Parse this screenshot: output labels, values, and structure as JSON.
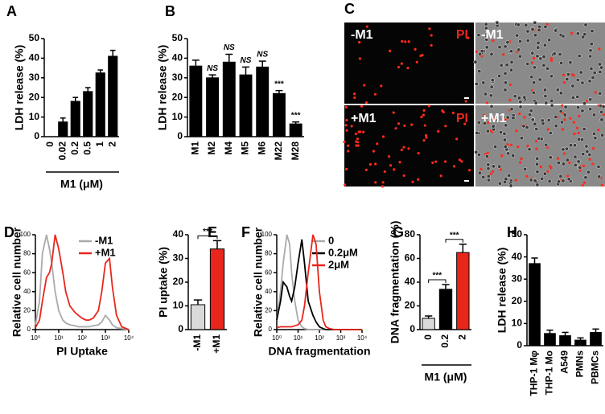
{
  "chart_data": [
    {
      "type": "bar",
      "panel": "A",
      "ylabel": "LDH release (%)",
      "xlabel": "M1 (μM)",
      "categories": [
        "0",
        "0.02",
        "0.2",
        "0.5",
        "1",
        "2"
      ],
      "values": [
        0,
        7.5,
        18,
        23,
        32.5,
        41
      ],
      "errors": [
        0,
        2,
        2,
        2,
        1.5,
        3
      ],
      "color": "#000000",
      "ylim": [
        0,
        50
      ],
      "yticks": [
        0,
        10,
        20,
        30,
        40,
        50
      ]
    },
    {
      "type": "bar",
      "panel": "B",
      "ylabel": "LDH release (%)",
      "categories": [
        "M1",
        "M2",
        "M4",
        "M5",
        "M6",
        "M22",
        "M28"
      ],
      "values": [
        36,
        30,
        38,
        31.5,
        35.5,
        22,
        6.5
      ],
      "errors": [
        3,
        1.5,
        4,
        4,
        3,
        1.5,
        1
      ],
      "annotations": [
        null,
        "NS",
        "NS",
        "NS",
        "NS",
        "***",
        "***"
      ],
      "color": "#000000",
      "ylim": [
        0,
        50
      ],
      "yticks": [
        0,
        10,
        20,
        30,
        40,
        50
      ]
    },
    {
      "type": "image",
      "panel": "C",
      "labels": [
        "-M1",
        "PI",
        "-M1",
        "+M1",
        "PI",
        "+M1"
      ]
    },
    {
      "type": "line",
      "panel": "D",
      "ylabel": "Relative cell number",
      "xlabel": "PI Uptake",
      "xscale": "log",
      "x": [
        1,
        1.5,
        2,
        3,
        4,
        5,
        7,
        10,
        15,
        20,
        30,
        50,
        70,
        100,
        150,
        200,
        300,
        500,
        700,
        1000,
        1500,
        2000,
        3000,
        5000,
        10000
      ],
      "series": [
        {
          "name": "-M1",
          "color": "#aaaaaa",
          "values": [
            5,
            30,
            80,
            100,
            85,
            70,
            40,
            20,
            10,
            7,
            5,
            4,
            3,
            3,
            3,
            3,
            4,
            5,
            8,
            15,
            10,
            5,
            2,
            1,
            0
          ]
        },
        {
          "name": "+M1",
          "color": "#e8261c",
          "values": [
            2,
            10,
            30,
            55,
            60,
            70,
            100,
            85,
            60,
            40,
            25,
            18,
            15,
            12,
            10,
            10,
            12,
            20,
            40,
            70,
            75,
            45,
            15,
            3,
            0
          ]
        }
      ],
      "xlim": [
        1,
        10000
      ],
      "xticks": [
        {
          "value": 1,
          "label": "10⁰"
        },
        {
          "value": 10,
          "label": "10¹"
        },
        {
          "value": 100,
          "label": "10²"
        },
        {
          "value": 1000,
          "label": "10³"
        },
        {
          "value": 10000,
          "label": "10⁴"
        }
      ],
      "ylim": [
        0,
        100
      ],
      "yticks": [
        0,
        20,
        40,
        60,
        80,
        100
      ],
      "legend": "upper right"
    },
    {
      "type": "bar",
      "panel": "E",
      "ylabel": "PI uptake (%)",
      "categories": [
        "-M1",
        "+M1"
      ],
      "values": [
        10.5,
        34
      ],
      "errors": [
        2,
        3.5
      ],
      "colors": [
        "#d9d9d9",
        "#e8261c"
      ],
      "significance": [
        {
          "from": 0,
          "to": 1,
          "label": "***"
        }
      ],
      "ylim": [
        0,
        40
      ],
      "yticks": [
        0,
        10,
        20,
        30,
        40
      ]
    },
    {
      "type": "line",
      "panel": "F",
      "ylabel": "Relative cell number",
      "xlabel": "DNA fragmentation",
      "xscale": "log",
      "x": [
        1,
        1.5,
        2,
        3,
        4,
        5,
        7,
        10,
        15,
        20,
        30,
        50,
        70,
        100,
        150,
        200,
        300,
        500,
        700,
        1000,
        1500,
        2000,
        3000,
        5000,
        10000
      ],
      "series": [
        {
          "name": "0",
          "color": "#aaaaaa",
          "values": [
            10,
            40,
            70,
            100,
            90,
            60,
            30,
            10,
            3,
            1,
            0,
            0,
            0,
            0,
            0,
            0,
            0,
            0,
            0,
            0,
            0,
            0,
            0,
            0,
            0
          ]
        },
        {
          "name": "0.2μM",
          "color": "#000000",
          "values": [
            10,
            30,
            50,
            45,
            35,
            30,
            45,
            70,
            95,
            70,
            30,
            15,
            8,
            3,
            1,
            0,
            0,
            0,
            0,
            0,
            0,
            0,
            0,
            0,
            0
          ]
        },
        {
          "name": "2μM",
          "color": "#e8261c",
          "values": [
            2,
            3,
            3,
            3,
            3,
            3,
            4,
            5,
            10,
            25,
            60,
            100,
            90,
            40,
            10,
            3,
            1,
            0,
            0,
            0,
            0,
            0,
            0,
            0,
            0
          ]
        }
      ],
      "xlim": [
        1,
        10000
      ],
      "xticks": [
        {
          "value": 1,
          "label": "10⁰"
        },
        {
          "value": 10,
          "label": "10¹"
        },
        {
          "value": 100,
          "label": "10²"
        },
        {
          "value": 1000,
          "label": "10³"
        },
        {
          "value": 10000,
          "label": "10⁴"
        }
      ],
      "ylim": [
        0,
        100
      ],
      "yticks": [
        0,
        20,
        40,
        60,
        80,
        100
      ],
      "legend": "upper right"
    },
    {
      "type": "bar",
      "panel": "G",
      "ylabel": "DNA fragmentation (%)",
      "xlabel": "M1 (μM)",
      "categories": [
        "0",
        "0.2",
        "2"
      ],
      "values": [
        9.5,
        34,
        65
      ],
      "errors": [
        2,
        4,
        7
      ],
      "colors": [
        "#d9d9d9",
        "#000000",
        "#e8261c"
      ],
      "significance": [
        {
          "from": 0,
          "to": 1,
          "label": "***"
        },
        {
          "from": 1,
          "to": 2,
          "label": "***"
        }
      ],
      "ylim": [
        0,
        80
      ],
      "yticks": [
        0,
        20,
        40,
        60,
        80
      ]
    },
    {
      "type": "bar",
      "panel": "H",
      "ylabel": "LDH release (%)",
      "categories": [
        "THP-1 Mφ",
        "THP-1 Mo",
        "A549",
        "PMNs",
        "PBMCs"
      ],
      "values": [
        37,
        5.5,
        4.5,
        2.5,
        6
      ],
      "errors": [
        2.5,
        1.5,
        1.5,
        1,
        1.5
      ],
      "color": "#000000",
      "ylim": [
        0,
        50
      ],
      "yticks": [
        0,
        10,
        20,
        30,
        40,
        50
      ]
    }
  ]
}
